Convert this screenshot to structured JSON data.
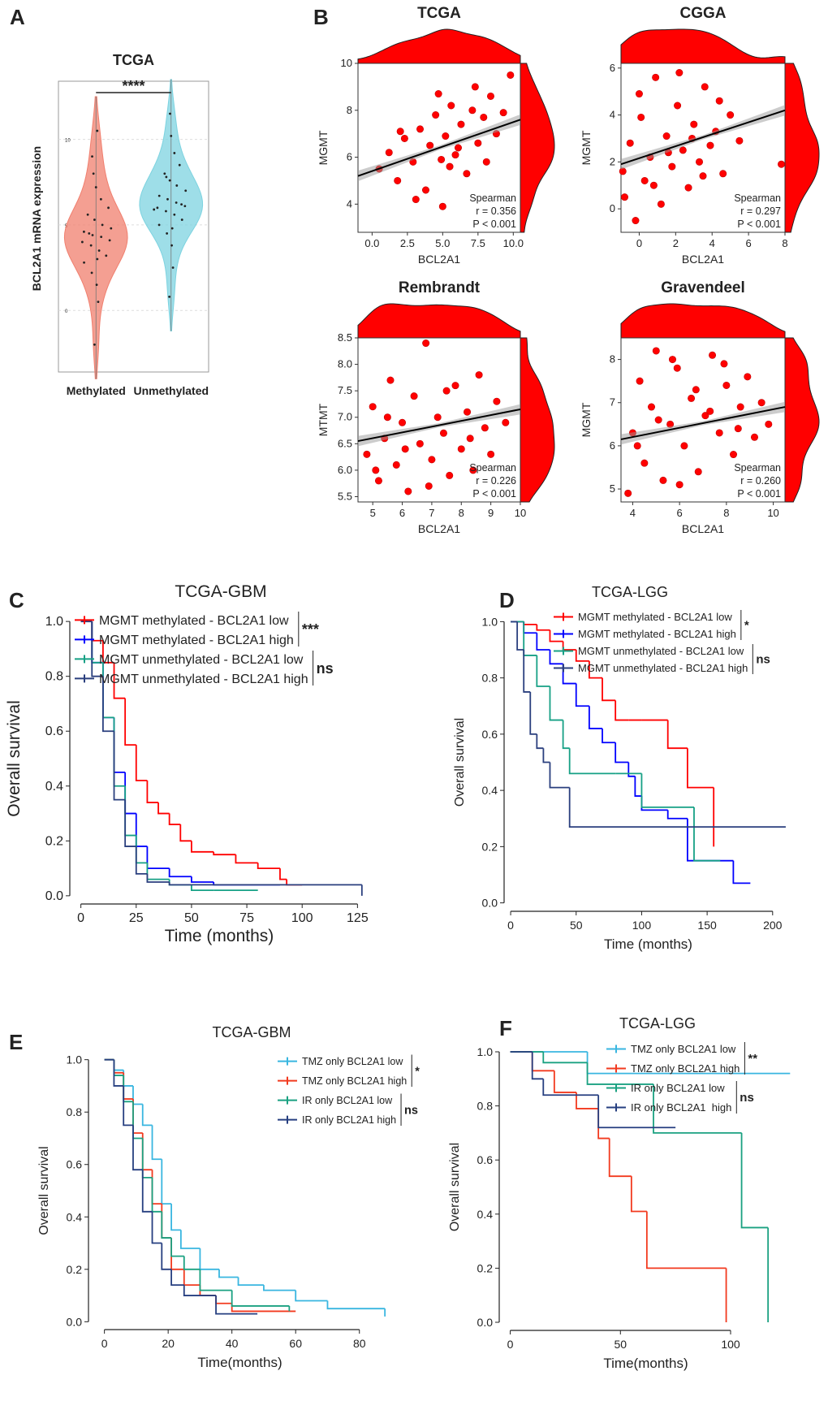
{
  "chart_data": [
    {
      "type": "violin",
      "label": "A",
      "title": "TCGA",
      "ylabel": "BCL2A1 mRNA expression",
      "categories": [
        "Methylated",
        "Unmethylated"
      ],
      "annotation": "****",
      "ylim": [
        -3.6,
        13.4
      ],
      "yticks": [
        0,
        5,
        10
      ],
      "grid": true,
      "series": [
        {
          "name": "Methylated",
          "color": "#f07f6e",
          "values": [
            -2.0,
            0.5,
            1.5,
            2.2,
            2.8,
            3.2,
            3.5,
            3.8,
            4.0,
            4.1,
            4.3,
            4.4,
            4.6,
            4.8,
            5.0,
            5.3,
            5.6,
            6.0,
            6.5,
            7.2,
            8.0,
            9.0,
            10.5,
            3.0,
            4.5
          ]
        },
        {
          "name": "Unmethylated",
          "color": "#7dd3e0",
          "values": [
            0.8,
            2.5,
            3.8,
            4.5,
            5.0,
            5.3,
            5.6,
            5.8,
            6.0,
            6.1,
            6.3,
            6.5,
            6.7,
            7.0,
            7.3,
            7.6,
            8.0,
            8.5,
            9.2,
            10.2,
            11.5,
            5.9,
            6.2,
            4.8,
            7.8
          ]
        }
      ]
    },
    {
      "type": "scatter",
      "label": "B",
      "title": "TCGA",
      "xlabel": "BCL2A1",
      "ylabel": "MGMT",
      "color": "#ff0000",
      "stats": [
        "Spearman",
        "r = 0.356",
        "P < 0.001"
      ],
      "xlim": [
        -1,
        10.5
      ],
      "xticks": [
        {
          "value": 0,
          "label": "0.0"
        },
        2.5,
        {
          "value": 5,
          "label": "5.0"
        },
        7.5,
        {
          "value": 10,
          "label": "10.0"
        }
      ],
      "ylim": [
        2.8,
        10
      ],
      "yticks": [
        4,
        6,
        8,
        10
      ],
      "x": [
        0.5,
        1.2,
        1.8,
        2.3,
        2.9,
        3.4,
        3.8,
        4.1,
        4.5,
        4.9,
        5.2,
        5.6,
        5.9,
        6.3,
        6.7,
        7.1,
        7.5,
        7.9,
        8.4,
        8.8,
        9.3,
        9.8,
        3.1,
        4.7,
        5.5,
        6.1,
        2.0,
        7.3,
        8.1,
        5.0
      ],
      "y": [
        5.5,
        6.2,
        5.0,
        6.8,
        5.8,
        7.2,
        4.6,
        6.5,
        7.8,
        5.9,
        6.9,
        8.2,
        6.1,
        7.4,
        5.3,
        8.0,
        6.6,
        7.7,
        8.6,
        7.0,
        7.9,
        9.5,
        4.2,
        8.7,
        5.6,
        6.4,
        7.1,
        9.0,
        5.8,
        3.9
      ],
      "trend": {
        "x": [
          -1,
          10.5
        ],
        "y": [
          5.2,
          7.6
        ]
      }
    },
    {
      "type": "scatter",
      "title": "CGGA",
      "xlabel": "BCL2A1",
      "ylabel": "MGMT",
      "color": "#ff0000",
      "stats": [
        "Spearman",
        "r = 0.297",
        "P < 0.001"
      ],
      "xlim": [
        -1,
        8
      ],
      "xticks": [
        0,
        2,
        4,
        6,
        8
      ],
      "ylim": [
        -1,
        6.2
      ],
      "yticks": [
        0,
        2,
        4,
        6
      ],
      "x": [
        -0.8,
        -0.5,
        -0.2,
        0.1,
        0.3,
        0.6,
        0.9,
        1.2,
        1.5,
        1.8,
        2.1,
        2.4,
        2.7,
        3.0,
        3.3,
        3.6,
        3.9,
        4.2,
        4.6,
        5.0,
        5.5,
        0.0,
        0.8,
        1.6,
        2.2,
        2.9,
        3.5,
        4.4,
        7.8,
        -0.9
      ],
      "y": [
        0.5,
        2.8,
        -0.5,
        3.9,
        1.2,
        2.2,
        5.6,
        0.2,
        3.1,
        1.8,
        4.4,
        2.5,
        0.9,
        3.6,
        2.0,
        5.2,
        2.7,
        3.3,
        1.5,
        4.0,
        2.9,
        4.9,
        1.0,
        2.4,
        5.8,
        3.0,
        1.4,
        4.6,
        1.9,
        1.6
      ],
      "trend": {
        "x": [
          -1,
          8
        ],
        "y": [
          1.9,
          4.2
        ]
      }
    },
    {
      "type": "scatter",
      "title": "Rembrandt",
      "xlabel": "BCL2A1",
      "ylabel": "MTMT",
      "color": "#ff0000",
      "stats": [
        "Spearman",
        "r = 0.226",
        "P < 0.001"
      ],
      "xlim": [
        4.5,
        10
      ],
      "xticks": [
        5,
        6,
        7,
        8,
        9,
        10
      ],
      "ylim": [
        5.4,
        8.5
      ],
      "yticks": [
        5.5,
        {
          "value": 6,
          "label": "6.0"
        },
        6.5,
        {
          "value": 7,
          "label": "7.0"
        },
        7.5,
        {
          "value": 8,
          "label": "8.0"
        },
        8.5
      ],
      "x": [
        4.8,
        5.0,
        5.2,
        5.4,
        5.6,
        5.8,
        6.0,
        6.2,
        6.4,
        6.6,
        6.8,
        7.0,
        7.2,
        7.4,
        7.6,
        7.8,
        8.0,
        8.2,
        8.4,
        8.6,
        8.8,
        9.0,
        9.2,
        9.5,
        5.1,
        5.5,
        6.1,
        6.9,
        7.5,
        8.3
      ],
      "y": [
        6.3,
        7.2,
        5.8,
        6.6,
        7.7,
        6.1,
        6.9,
        5.6,
        7.4,
        6.5,
        8.4,
        6.2,
        7.0,
        6.7,
        5.9,
        7.6,
        6.4,
        7.1,
        6.0,
        7.8,
        6.8,
        6.3,
        7.3,
        6.9,
        6.0,
        7.0,
        6.4,
        5.7,
        7.5,
        6.6
      ],
      "trend": {
        "x": [
          4.5,
          10
        ],
        "y": [
          6.55,
          7.15
        ]
      }
    },
    {
      "type": "scatter",
      "title": "Gravendeel",
      "xlabel": "BCL2A1",
      "ylabel": "MGMT",
      "color": "#ff0000",
      "stats": [
        "Spearman",
        "r = 0.260",
        "P < 0.001"
      ],
      "xlim": [
        3.5,
        10.5
      ],
      "xticks": [
        4,
        6,
        8,
        10
      ],
      "ylim": [
        4.7,
        8.5
      ],
      "yticks": [
        5,
        6,
        7,
        8
      ],
      "x": [
        3.8,
        4.0,
        4.3,
        4.5,
        4.8,
        5.0,
        5.3,
        5.6,
        5.9,
        6.2,
        6.5,
        6.8,
        7.1,
        7.4,
        7.7,
        8.0,
        8.3,
        8.6,
        8.9,
        9.2,
        9.5,
        4.2,
        5.1,
        6.0,
        6.7,
        7.3,
        7.9,
        8.5,
        9.8,
        5.7
      ],
      "y": [
        4.9,
        6.3,
        7.5,
        5.6,
        6.9,
        8.2,
        5.2,
        6.5,
        7.8,
        6.0,
        7.1,
        5.4,
        6.7,
        8.1,
        6.3,
        7.4,
        5.8,
        6.9,
        7.6,
        6.2,
        7.0,
        6.0,
        6.6,
        5.1,
        7.3,
        6.8,
        7.9,
        6.4,
        6.5,
        8.0
      ],
      "trend": {
        "x": [
          3.5,
          10.5
        ],
        "y": [
          6.15,
          6.9
        ]
      }
    },
    {
      "type": "km",
      "label": "C",
      "title": "TCGA-GBM",
      "xlabel": "Time (months)",
      "ylabel": "Overall survival",
      "annotations": [
        "***",
        "ns"
      ],
      "xlim": [
        -5,
        130
      ],
      "xticks": [
        0,
        25,
        50,
        75,
        100,
        125
      ],
      "ylim": [
        -0.03,
        1.03
      ],
      "yticks": [
        {
          "value": 0,
          "label": "0.0"
        },
        0.2,
        0.4,
        0.6,
        0.8,
        {
          "value": 1,
          "label": "1.0"
        }
      ],
      "series": [
        {
          "name": "MGMT methylated - BCL2A1 low",
          "color": "#ff0000",
          "x": [
            0,
            5,
            10,
            15,
            20,
            25,
            30,
            35,
            40,
            45,
            50,
            60,
            70,
            80,
            90,
            93,
            100
          ],
          "values": [
            1,
            0.93,
            0.85,
            0.72,
            0.55,
            0.42,
            0.34,
            0.3,
            0.26,
            0.2,
            0.16,
            0.15,
            0.12,
            0.1,
            0.06,
            0.04,
            0.04
          ]
        },
        {
          "name": "MGMT methylated - BCL2A1 high",
          "color": "#0000ff",
          "x": [
            0,
            5,
            10,
            15,
            20,
            25,
            30,
            40,
            50,
            60,
            90
          ],
          "values": [
            1,
            0.85,
            0.65,
            0.45,
            0.3,
            0.18,
            0.1,
            0.07,
            0.05,
            0.04,
            0.04
          ]
        },
        {
          "name": "MGMT unmethylated - BCL2A1 low",
          "color": "#16a085",
          "x": [
            0,
            5,
            10,
            15,
            20,
            25,
            30,
            40,
            50,
            60,
            80
          ],
          "values": [
            1,
            0.85,
            0.65,
            0.4,
            0.22,
            0.12,
            0.06,
            0.04,
            0.02,
            0.02,
            0.02
          ]
        },
        {
          "name": "MGMT unmethylated - BCL2A1 high",
          "color": "#2a3f7e",
          "x": [
            0,
            5,
            10,
            15,
            20,
            25,
            30,
            40,
            127,
            127
          ],
          "values": [
            1,
            0.8,
            0.6,
            0.35,
            0.18,
            0.08,
            0.05,
            0.04,
            0.04,
            0
          ]
        }
      ]
    },
    {
      "type": "km",
      "label": "D",
      "title": "TCGA-LGG",
      "xlabel": "Time (months)",
      "ylabel": "Overall survival",
      "annotations": [
        "*",
        "ns"
      ],
      "xlim": [
        -5,
        215
      ],
      "xticks": [
        0,
        50,
        100,
        150,
        200
      ],
      "ylim": [
        -0.03,
        1.03
      ],
      "yticks": [
        {
          "value": 0,
          "label": "0.0"
        },
        0.2,
        0.4,
        0.6,
        0.8,
        {
          "value": 1,
          "label": "1.0"
        }
      ],
      "series": [
        {
          "name": "MGMT methylated - BCL2A1 low",
          "color": "#ff0000",
          "x": [
            0,
            10,
            20,
            30,
            40,
            50,
            60,
            70,
            80,
            90,
            100,
            120,
            135,
            155
          ],
          "values": [
            1,
            0.99,
            0.97,
            0.93,
            0.9,
            0.86,
            0.8,
            0.72,
            0.65,
            0.65,
            0.65,
            0.55,
            0.41,
            0.2
          ]
        },
        {
          "name": "MGMT methylated - BCL2A1 high",
          "color": "#0000ff",
          "x": [
            0,
            10,
            20,
            30,
            40,
            50,
            60,
            70,
            80,
            90,
            95,
            100,
            120,
            135,
            170,
            183
          ],
          "values": [
            1,
            0.96,
            0.9,
            0.85,
            0.78,
            0.7,
            0.62,
            0.57,
            0.5,
            0.45,
            0.38,
            0.33,
            0.3,
            0.15,
            0.07,
            0.07
          ]
        },
        {
          "name": "MGMT unmethylated - BCL2A1 low",
          "color": "#16a085",
          "x": [
            0,
            10,
            20,
            30,
            40,
            45,
            80,
            100,
            140,
            160
          ],
          "values": [
            1,
            0.88,
            0.77,
            0.65,
            0.55,
            0.46,
            0.46,
            0.34,
            0.15,
            0.15
          ]
        },
        {
          "name": "MGMT unmethylated - BCL2A1 high",
          "color": "#2a3f7e",
          "x": [
            0,
            5,
            10,
            15,
            20,
            25,
            30,
            45,
            210
          ],
          "values": [
            1,
            0.9,
            0.75,
            0.6,
            0.55,
            0.5,
            0.41,
            0.27,
            0.27
          ]
        }
      ]
    },
    {
      "type": "km",
      "label": "E",
      "title": "TCGA-GBM",
      "xlabel": "Time(months)",
      "ylabel": "Overall survival",
      "annotations": [
        "*",
        "ns"
      ],
      "xlim": [
        -5,
        90
      ],
      "xticks": [
        0,
        20,
        40,
        60,
        80
      ],
      "ylim": [
        -0.03,
        1.03
      ],
      "yticks": [
        {
          "value": 0,
          "label": "0.0"
        },
        0.2,
        0.4,
        0.6,
        0.8,
        {
          "value": 1,
          "label": "1.0"
        }
      ],
      "series": [
        {
          "name": "TMZ only BCL2A1 low",
          "color": "#39b6e0",
          "x": [
            0,
            3,
            6,
            9,
            12,
            15,
            18,
            21,
            24,
            30,
            36,
            42,
            50,
            60,
            70,
            88
          ],
          "values": [
            1,
            0.96,
            0.9,
            0.83,
            0.75,
            0.62,
            0.45,
            0.35,
            0.28,
            0.2,
            0.17,
            0.14,
            0.12,
            0.08,
            0.05,
            0.02
          ]
        },
        {
          "name": "TMZ only BCL2A1 high",
          "color": "#f23a1f",
          "x": [
            0,
            3,
            6,
            9,
            12,
            15,
            18,
            21,
            25,
            30,
            35,
            40,
            60
          ],
          "values": [
            1,
            0.95,
            0.85,
            0.72,
            0.58,
            0.45,
            0.32,
            0.2,
            0.14,
            0.1,
            0.07,
            0.04,
            0.04
          ]
        },
        {
          "name": "IR only BCL2A1 low",
          "color": "#1aa181",
          "x": [
            0,
            3,
            6,
            9,
            12,
            15,
            18,
            21,
            25,
            30,
            40,
            58
          ],
          "values": [
            1,
            0.94,
            0.84,
            0.7,
            0.55,
            0.42,
            0.32,
            0.25,
            0.2,
            0.12,
            0.06,
            0.04
          ]
        },
        {
          "name": "IR only BCL2A1 high",
          "color": "#263f80",
          "x": [
            0,
            3,
            6,
            9,
            12,
            15,
            18,
            21,
            25,
            35,
            48
          ],
          "values": [
            1,
            0.9,
            0.75,
            0.58,
            0.42,
            0.3,
            0.2,
            0.14,
            0.1,
            0.03,
            0.03
          ]
        }
      ]
    },
    {
      "type": "km",
      "label": "F",
      "title": "TCGA-LGG",
      "xlabel": "Time(months)",
      "ylabel": "Overall survival",
      "annotations": [
        "**",
        "ns"
      ],
      "xlim": [
        -5,
        128
      ],
      "xticks": [
        0,
        50,
        100
      ],
      "ylim": [
        -0.03,
        1.03
      ],
      "yticks": [
        {
          "value": 0,
          "label": "0.0"
        },
        0.2,
        0.4,
        0.6,
        0.8,
        {
          "value": 1,
          "label": "1.0"
        }
      ],
      "series": [
        {
          "name": "TMZ only BCL2A1 low",
          "color": "#39b6e0",
          "x": [
            0,
            35,
            127
          ],
          "values": [
            1,
            0.92,
            0.92
          ]
        },
        {
          "name": "TMZ only BCL2A1 high",
          "color": "#f23a1f",
          "x": [
            0,
            10,
            20,
            30,
            40,
            45,
            55,
            62,
            98,
            98
          ],
          "values": [
            1,
            0.93,
            0.85,
            0.79,
            0.68,
            0.54,
            0.41,
            0.2,
            0.2,
            0
          ]
        },
        {
          "name": "IR only BCL2A1 low",
          "color": "#1aa181",
          "x": [
            0,
            15,
            35,
            65,
            105,
            117,
            117
          ],
          "values": [
            1,
            0.96,
            0.88,
            0.7,
            0.35,
            0.35,
            0
          ]
        },
        {
          "name": "IR only BCL2A1  high",
          "color": "#263f80",
          "x": [
            0,
            10,
            15,
            40,
            75
          ],
          "values": [
            1,
            0.9,
            0.84,
            0.72,
            0.72
          ]
        }
      ]
    }
  ]
}
